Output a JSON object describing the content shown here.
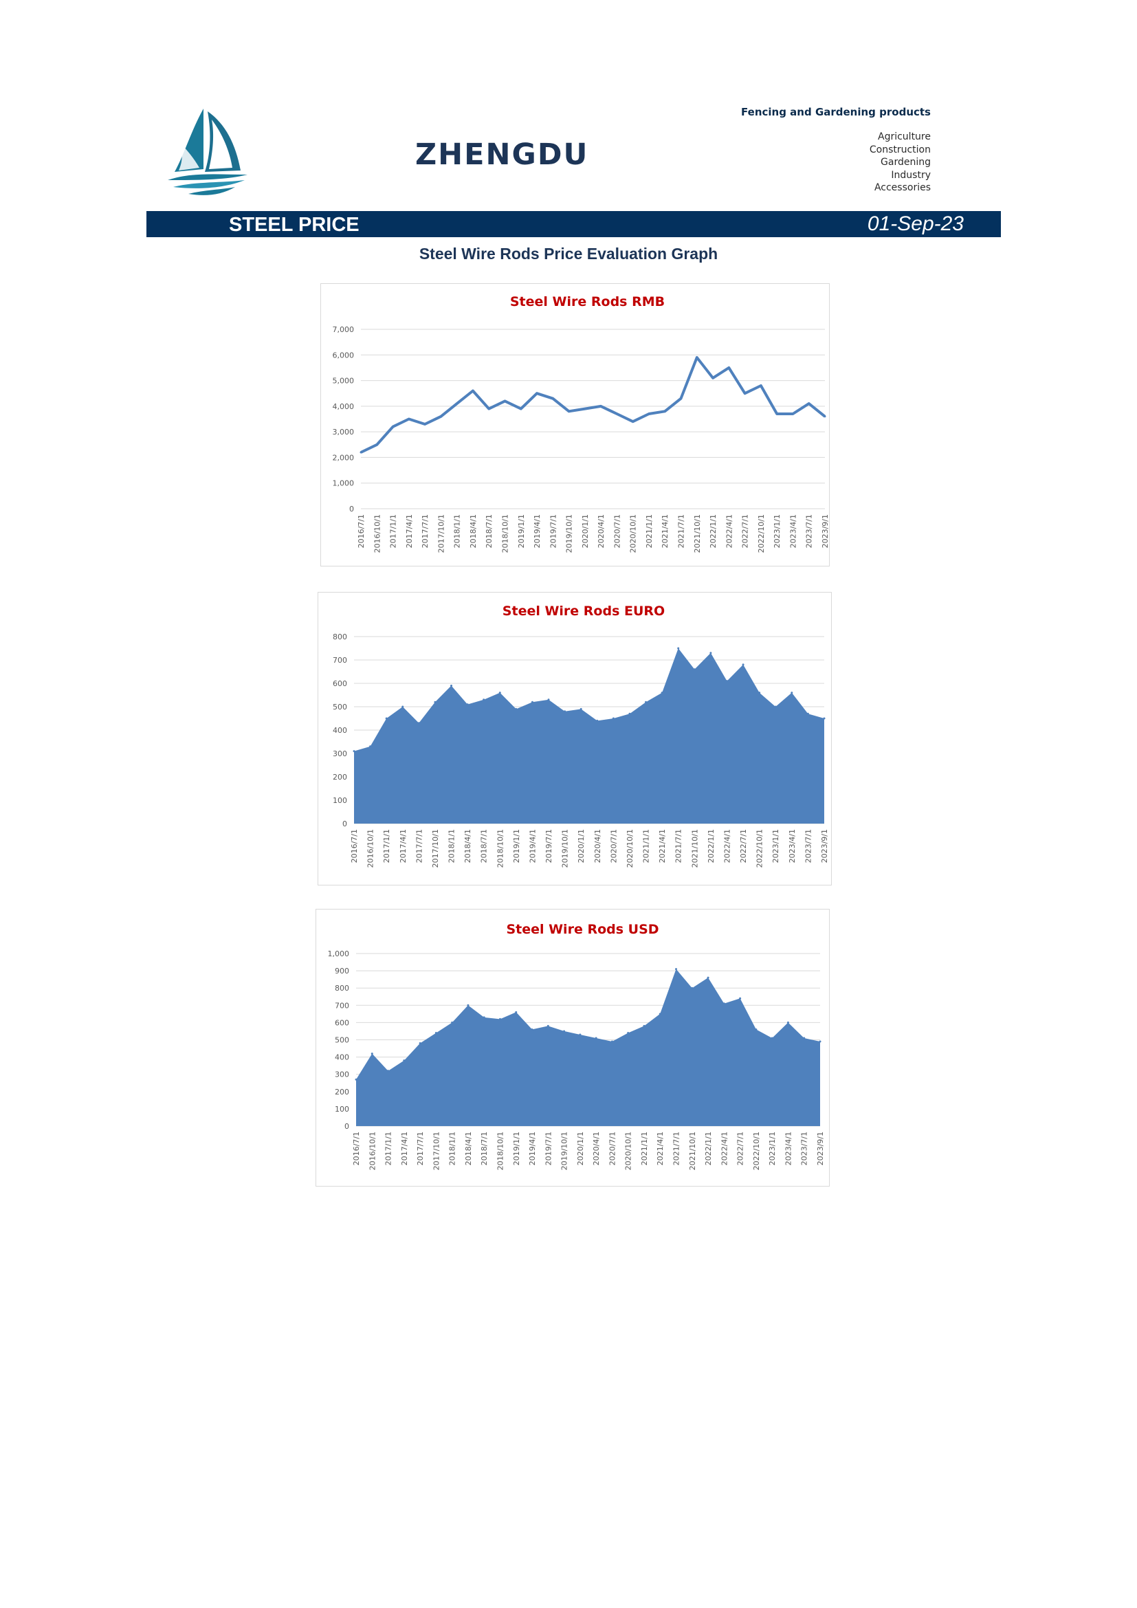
{
  "header": {
    "brand": "ZHENGDU",
    "tagline_title": "Fencing and Gardening products",
    "tagline_items": [
      "Agriculture",
      "Construction",
      "Gardening",
      "Industry",
      "Accessories"
    ]
  },
  "banner": {
    "title": "STEEL PRICE",
    "date": "01-Sep-23"
  },
  "graph_title": "Steel Wire Rods Price Evaluation Graph",
  "colors": {
    "banner": "#04315e",
    "chart_fill": "#4f81bd",
    "chart_title": "#c00000",
    "logo": "#1b7a99"
  },
  "chart_data": [
    {
      "type": "line",
      "title": "Steel Wire Rods RMB",
      "ylim": [
        0,
        7000
      ],
      "yticks": [
        0,
        1000,
        2000,
        3000,
        4000,
        5000,
        6000,
        7000
      ],
      "ytick_labels": [
        "0",
        "1,000",
        "2,000",
        "3,000",
        "4,000",
        "5,000",
        "6,000",
        "7,000"
      ],
      "grid": true,
      "x": [
        "2016/7/1",
        "2016/10/1",
        "2017/1/1",
        "2017/4/1",
        "2017/7/1",
        "2017/10/1",
        "2018/1/1",
        "2018/4/1",
        "2018/7/1",
        "2018/10/1",
        "2019/1/1",
        "2019/4/1",
        "2019/7/1",
        "2019/10/1",
        "2020/1/1",
        "2020/4/1",
        "2020/7/1",
        "2020/10/1",
        "2021/1/1",
        "2021/4/1",
        "2021/7/1",
        "2021/10/1",
        "2022/1/1",
        "2022/4/1",
        "2022/7/1",
        "2022/10/1",
        "2023/1/1",
        "2023/4/1",
        "2023/7/1",
        "2023/9/1"
      ],
      "values": [
        2200,
        2500,
        3200,
        3500,
        3300,
        3600,
        4100,
        4600,
        3900,
        4200,
        3900,
        4500,
        4300,
        3800,
        3900,
        4000,
        3700,
        3400,
        3700,
        3800,
        4300,
        5900,
        5100,
        5500,
        4500,
        4800,
        3700,
        3700,
        4100,
        3600
      ]
    },
    {
      "type": "area",
      "title": "Steel Wire Rods EURO",
      "ylim": [
        0,
        800
      ],
      "yticks": [
        0,
        100,
        200,
        300,
        400,
        500,
        600,
        700,
        800
      ],
      "ytick_labels": [
        "0",
        "100",
        "200",
        "300",
        "400",
        "500",
        "600",
        "700",
        "800"
      ],
      "grid": true,
      "x": [
        "2016/7/1",
        "2016/10/1",
        "2017/1/1",
        "2017/4/1",
        "2017/7/1",
        "2017/10/1",
        "2018/1/1",
        "2018/4/1",
        "2018/7/1",
        "2018/10/1",
        "2019/1/1",
        "2019/4/1",
        "2019/7/1",
        "2019/10/1",
        "2020/1/1",
        "2020/4/1",
        "2020/7/1",
        "2020/10/1",
        "2021/1/1",
        "2021/4/1",
        "2021/7/1",
        "2021/10/1",
        "2022/1/1",
        "2022/4/1",
        "2022/7/1",
        "2022/10/1",
        "2023/1/1",
        "2023/4/1",
        "2023/7/1",
        "2023/9/1"
      ],
      "values": [
        310,
        330,
        450,
        500,
        430,
        520,
        590,
        510,
        530,
        560,
        490,
        520,
        530,
        480,
        490,
        440,
        450,
        470,
        520,
        560,
        750,
        660,
        730,
        610,
        680,
        560,
        500,
        560,
        470,
        450
      ]
    },
    {
      "type": "area",
      "title": "Steel Wire Rods USD",
      "ylim": [
        0,
        1000
      ],
      "yticks": [
        0,
        100,
        200,
        300,
        400,
        500,
        600,
        700,
        800,
        900,
        1000
      ],
      "ytick_labels": [
        "0",
        "100",
        "200",
        "300",
        "400",
        "500",
        "600",
        "700",
        "800",
        "900",
        "1,000"
      ],
      "grid": true,
      "x": [
        "2016/7/1",
        "2016/10/1",
        "2017/1/1",
        "2017/4/1",
        "2017/7/1",
        "2017/10/1",
        "2018/1/1",
        "2018/4/1",
        "2018/7/1",
        "2018/10/1",
        "2019/1/1",
        "2019/4/1",
        "2019/7/1",
        "2019/10/1",
        "2020/1/1",
        "2020/4/1",
        "2020/7/1",
        "2020/10/1",
        "2021/1/1",
        "2021/4/1",
        "2021/7/1",
        "2021/10/1",
        "2022/1/1",
        "2022/4/1",
        "2022/7/1",
        "2022/10/1",
        "2023/1/1",
        "2023/4/1",
        "2023/7/1",
        "2023/9/1"
      ],
      "values": [
        270,
        420,
        320,
        380,
        480,
        540,
        600,
        700,
        630,
        620,
        660,
        560,
        580,
        550,
        530,
        510,
        490,
        540,
        580,
        650,
        910,
        800,
        860,
        710,
        740,
        560,
        510,
        600,
        510,
        490
      ]
    }
  ]
}
